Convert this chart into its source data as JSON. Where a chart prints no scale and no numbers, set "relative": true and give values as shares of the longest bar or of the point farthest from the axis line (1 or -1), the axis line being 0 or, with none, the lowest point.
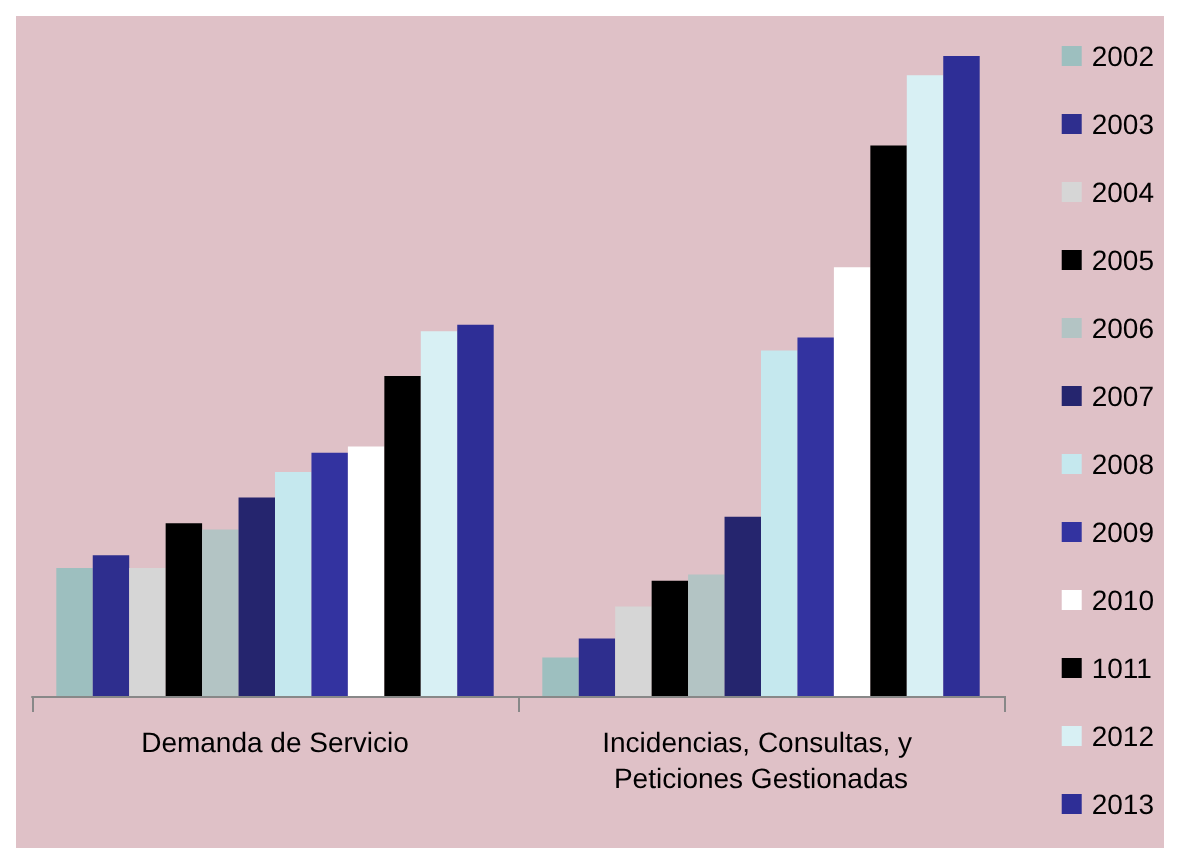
{
  "chart_data": {
    "type": "bar",
    "relative": true,
    "categories": [
      "Demanda de Servicio",
      "Incidencias, Consultas, y Peticiones Gestionadas"
    ],
    "series": [
      {
        "name": "2002",
        "color": "#9dbfbf",
        "values": [
          0.2,
          0.06
        ]
      },
      {
        "name": "2003",
        "color": "#2e2e8e",
        "values": [
          0.22,
          0.09
        ]
      },
      {
        "name": "2004",
        "color": "#d6d6d6",
        "values": [
          0.2,
          0.14
        ]
      },
      {
        "name": "2005",
        "color": "#000000",
        "values": [
          0.27,
          0.18
        ]
      },
      {
        "name": "2006",
        "color": "#b3c4c4",
        "values": [
          0.26,
          0.19
        ]
      },
      {
        "name": "2007",
        "color": "#25256e",
        "values": [
          0.31,
          0.28
        ]
      },
      {
        "name": "2008",
        "color": "#c5e8ee",
        "values": [
          0.35,
          0.54
        ]
      },
      {
        "name": "2009",
        "color": "#3333a0",
        "values": [
          0.38,
          0.56
        ]
      },
      {
        "name": "2010",
        "color": "#ffffff",
        "values": [
          0.39,
          0.67
        ]
      },
      {
        "name": "1011",
        "color": "#000000",
        "values": [
          0.5,
          0.86
        ]
      },
      {
        "name": "2012",
        "color": "#d8f0f4",
        "values": [
          0.57,
          0.97
        ]
      },
      {
        "name": "2013",
        "color": "#2e2e96",
        "values": [
          0.58,
          1
        ]
      }
    ],
    "legend": "right"
  }
}
